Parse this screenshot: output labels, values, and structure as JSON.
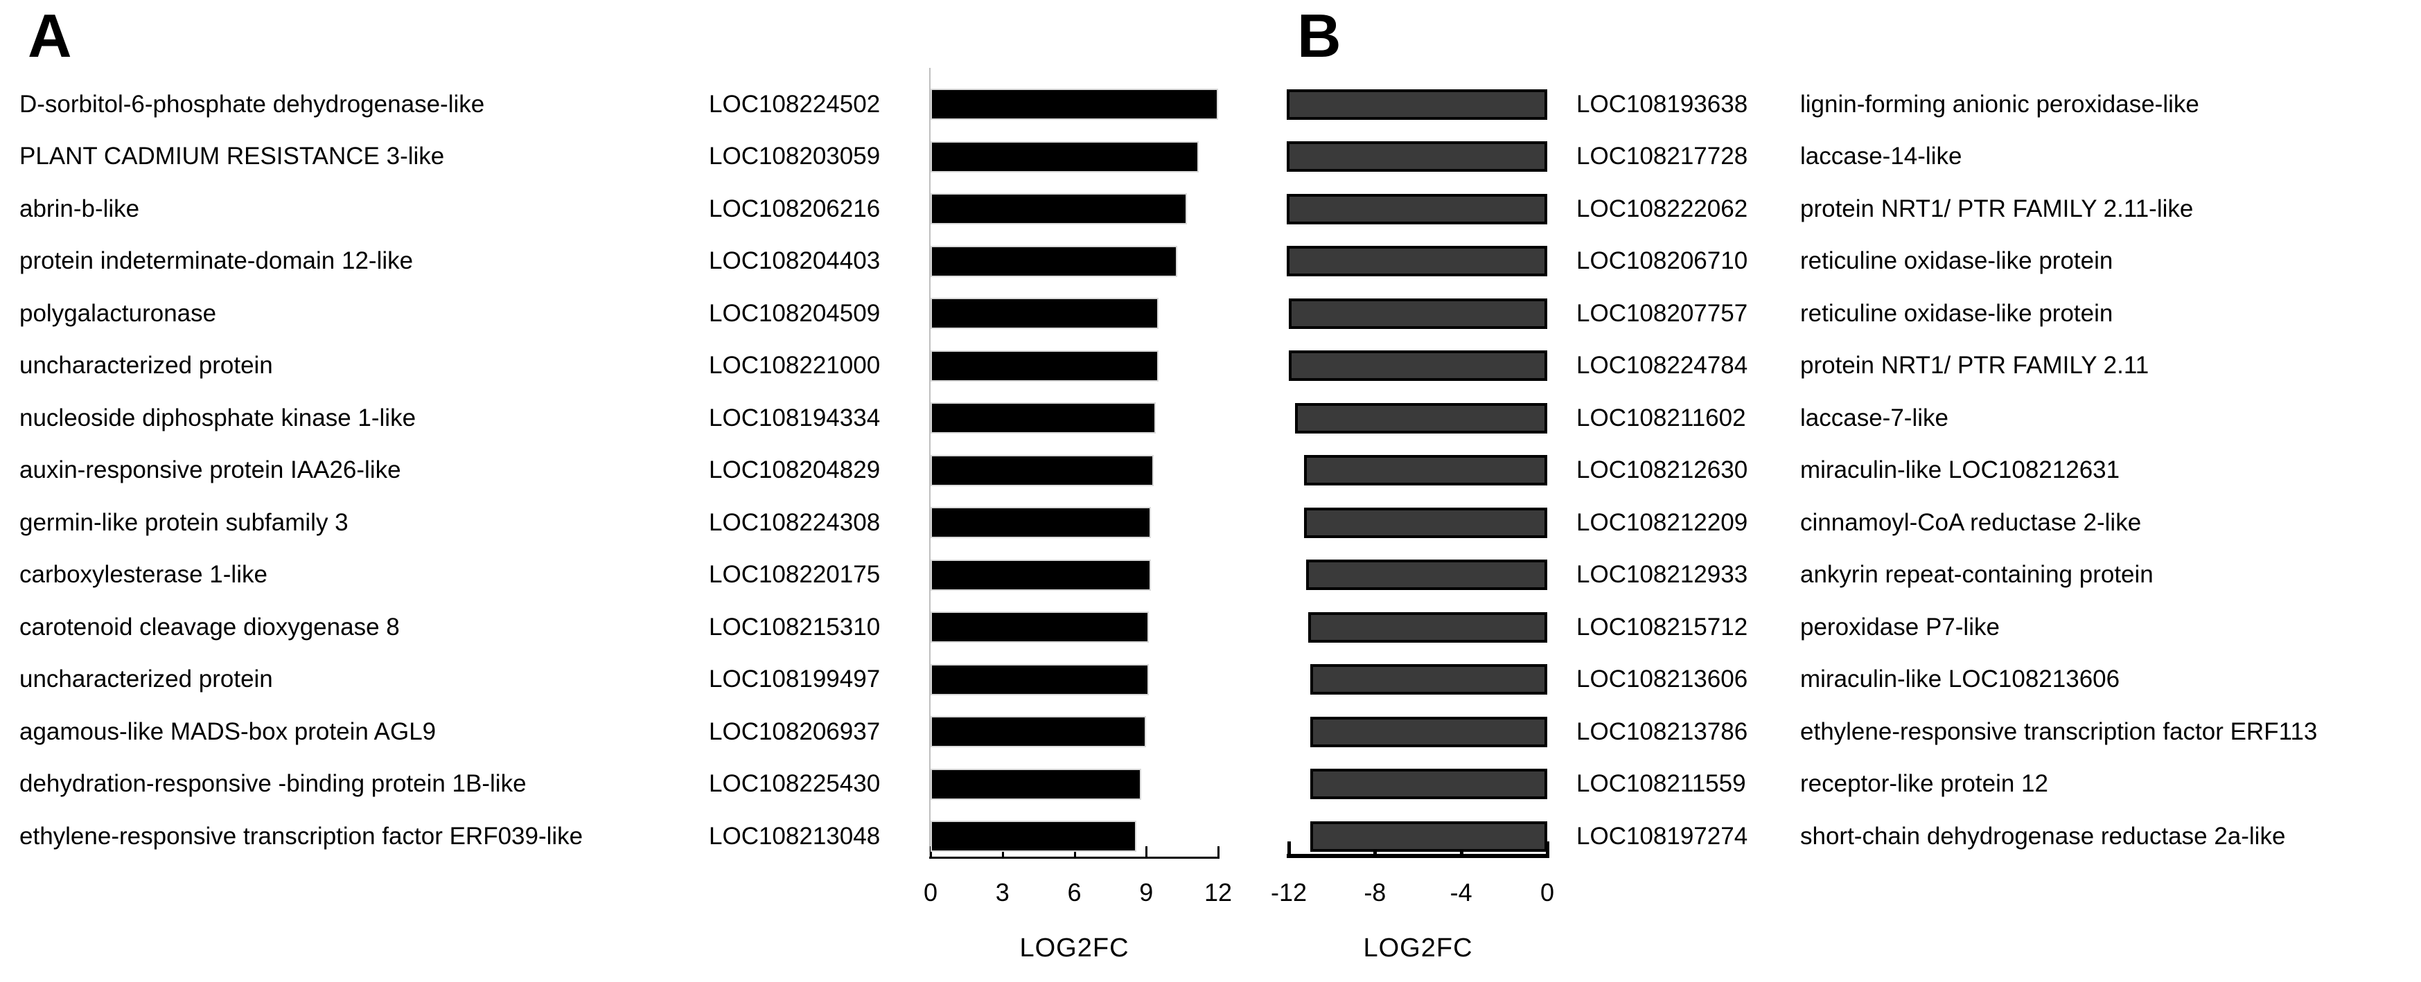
{
  "chart_data": [
    {
      "type": "bar",
      "orientation": "horizontal",
      "panel": "A",
      "title": "A",
      "xlabel": "LOG2FC",
      "xlim": [
        0,
        12
      ],
      "xticks": [
        0,
        3,
        6,
        9,
        12
      ],
      "grid": false,
      "bar_color": "#000000",
      "bar_border_color": "#d9d9d9",
      "rows": [
        {
          "gene": "D-sorbitol-6-phosphate dehydrogenase-like",
          "locus": "LOC108224502",
          "log2fc": 12.0
        },
        {
          "gene": "PLANT CADMIUM RESISTANCE 3-like",
          "locus": "LOC108203059",
          "log2fc": 11.2
        },
        {
          "gene": "abrin-b-like",
          "locus": "LOC108206216",
          "log2fc": 10.7
        },
        {
          "gene": "protein indeterminate-domain 12-like",
          "locus": "LOC108204403",
          "log2fc": 10.3
        },
        {
          "gene": "polygalacturonase",
          "locus": "LOC108204509",
          "log2fc": 9.5
        },
        {
          "gene": "uncharacterized protein",
          "locus": "LOC108221000",
          "log2fc": 9.5
        },
        {
          "gene": "nucleoside diphosphate kinase 1-like",
          "locus": "LOC108194334",
          "log2fc": 9.4
        },
        {
          "gene": "auxin-responsive protein IAA26-like",
          "locus": "LOC108204829",
          "log2fc": 9.3
        },
        {
          "gene": "germin-like protein subfamily 3",
          "locus": "LOC108224308",
          "log2fc": 9.2
        },
        {
          "gene": "carboxylesterase 1-like",
          "locus": "LOC108220175",
          "log2fc": 9.2
        },
        {
          "gene": "carotenoid cleavage dioxygenase 8",
          "locus": "LOC108215310",
          "log2fc": 9.1
        },
        {
          "gene": "uncharacterized protein",
          "locus": "LOC108199497",
          "log2fc": 9.1
        },
        {
          "gene": "agamous-like MADS-box protein AGL9",
          "locus": "LOC108206937",
          "log2fc": 9.0
        },
        {
          "gene": "dehydration-responsive -binding protein 1B-like",
          "locus": "LOC108225430",
          "log2fc": 8.8
        },
        {
          "gene": "ethylene-responsive transcription factor ERF039-like",
          "locus": "LOC108213048",
          "log2fc": 8.6
        }
      ]
    },
    {
      "type": "bar",
      "orientation": "horizontal",
      "panel": "B",
      "title": "B",
      "xlabel": "LOG2FC",
      "xlim": [
        -12,
        0
      ],
      "xticks": [
        -12,
        -8,
        -4,
        0
      ],
      "grid": false,
      "bar_color": "#3a3a3a",
      "bar_border_color": "#000000",
      "rows": [
        {
          "locus": "LOC108193638",
          "gene": "lignin-forming anionic peroxidase-like",
          "log2fc": -12.1
        },
        {
          "locus": "LOC108217728",
          "gene": "laccase-14-like",
          "log2fc": -12.1
        },
        {
          "locus": "LOC108222062",
          "gene": "protein NRT1/ PTR FAMILY 2.11-like",
          "log2fc": -12.1
        },
        {
          "locus": "LOC108206710",
          "gene": "reticuline oxidase-like protein",
          "log2fc": -12.1
        },
        {
          "locus": "LOC108207757",
          "gene": "reticuline oxidase-like protein",
          "log2fc": -12.0
        },
        {
          "locus": "LOC108224784",
          "gene": "protein NRT1/ PTR FAMILY 2.11",
          "log2fc": -12.0
        },
        {
          "locus": "LOC108211602",
          "gene": "laccase-7-like",
          "log2fc": -11.7
        },
        {
          "locus": "LOC108212630",
          "gene": "miraculin-like LOC108212631",
          "log2fc": -11.3
        },
        {
          "locus": "LOC108212209",
          "gene": "cinnamoyl-CoA reductase 2-like",
          "log2fc": -11.3
        },
        {
          "locus": "LOC108212933",
          "gene": "ankyrin repeat-containing protein",
          "log2fc": -11.2
        },
        {
          "locus": "LOC108215712",
          "gene": "peroxidase P7-like",
          "log2fc": -11.1
        },
        {
          "locus": "LOC108213606",
          "gene": "miraculin-like LOC108213606",
          "log2fc": -11.0
        },
        {
          "locus": "LOC108213786",
          "gene": "ethylene-responsive transcription factor ERF113",
          "log2fc": -11.0
        },
        {
          "locus": "LOC108211559",
          "gene": "receptor-like protein 12",
          "log2fc": -11.0
        },
        {
          "locus": "LOC108197274",
          "gene": "short-chain dehydrogenase reductase 2a-like",
          "log2fc": -11.0
        }
      ]
    }
  ]
}
